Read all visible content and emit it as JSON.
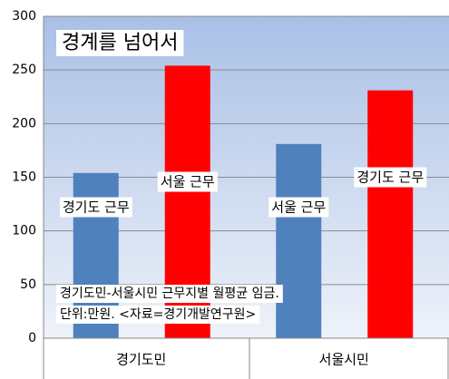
{
  "chart_data": {
    "type": "bar",
    "title": "경계를 넘어서",
    "annotations": [
      "경기도민-서울시민 근무지별 월평균 임금.",
      "단위:만원. <자료=경기개발연구원>"
    ],
    "categories": [
      "경기도민",
      "서울시민"
    ],
    "series": [
      {
        "color": "#4f81bd",
        "values": [
          154,
          181
        ],
        "value_labels": [
          "경기도 근무",
          "서울 근무"
        ]
      },
      {
        "color": "#ff0000",
        "values": [
          254,
          231
        ],
        "value_labels": [
          "서울 근무",
          "경기도 근무"
        ]
      }
    ],
    "ylim": [
      0,
      300
    ],
    "yticks": [
      0,
      50,
      100,
      150,
      200,
      250,
      300
    ],
    "grid": true
  }
}
